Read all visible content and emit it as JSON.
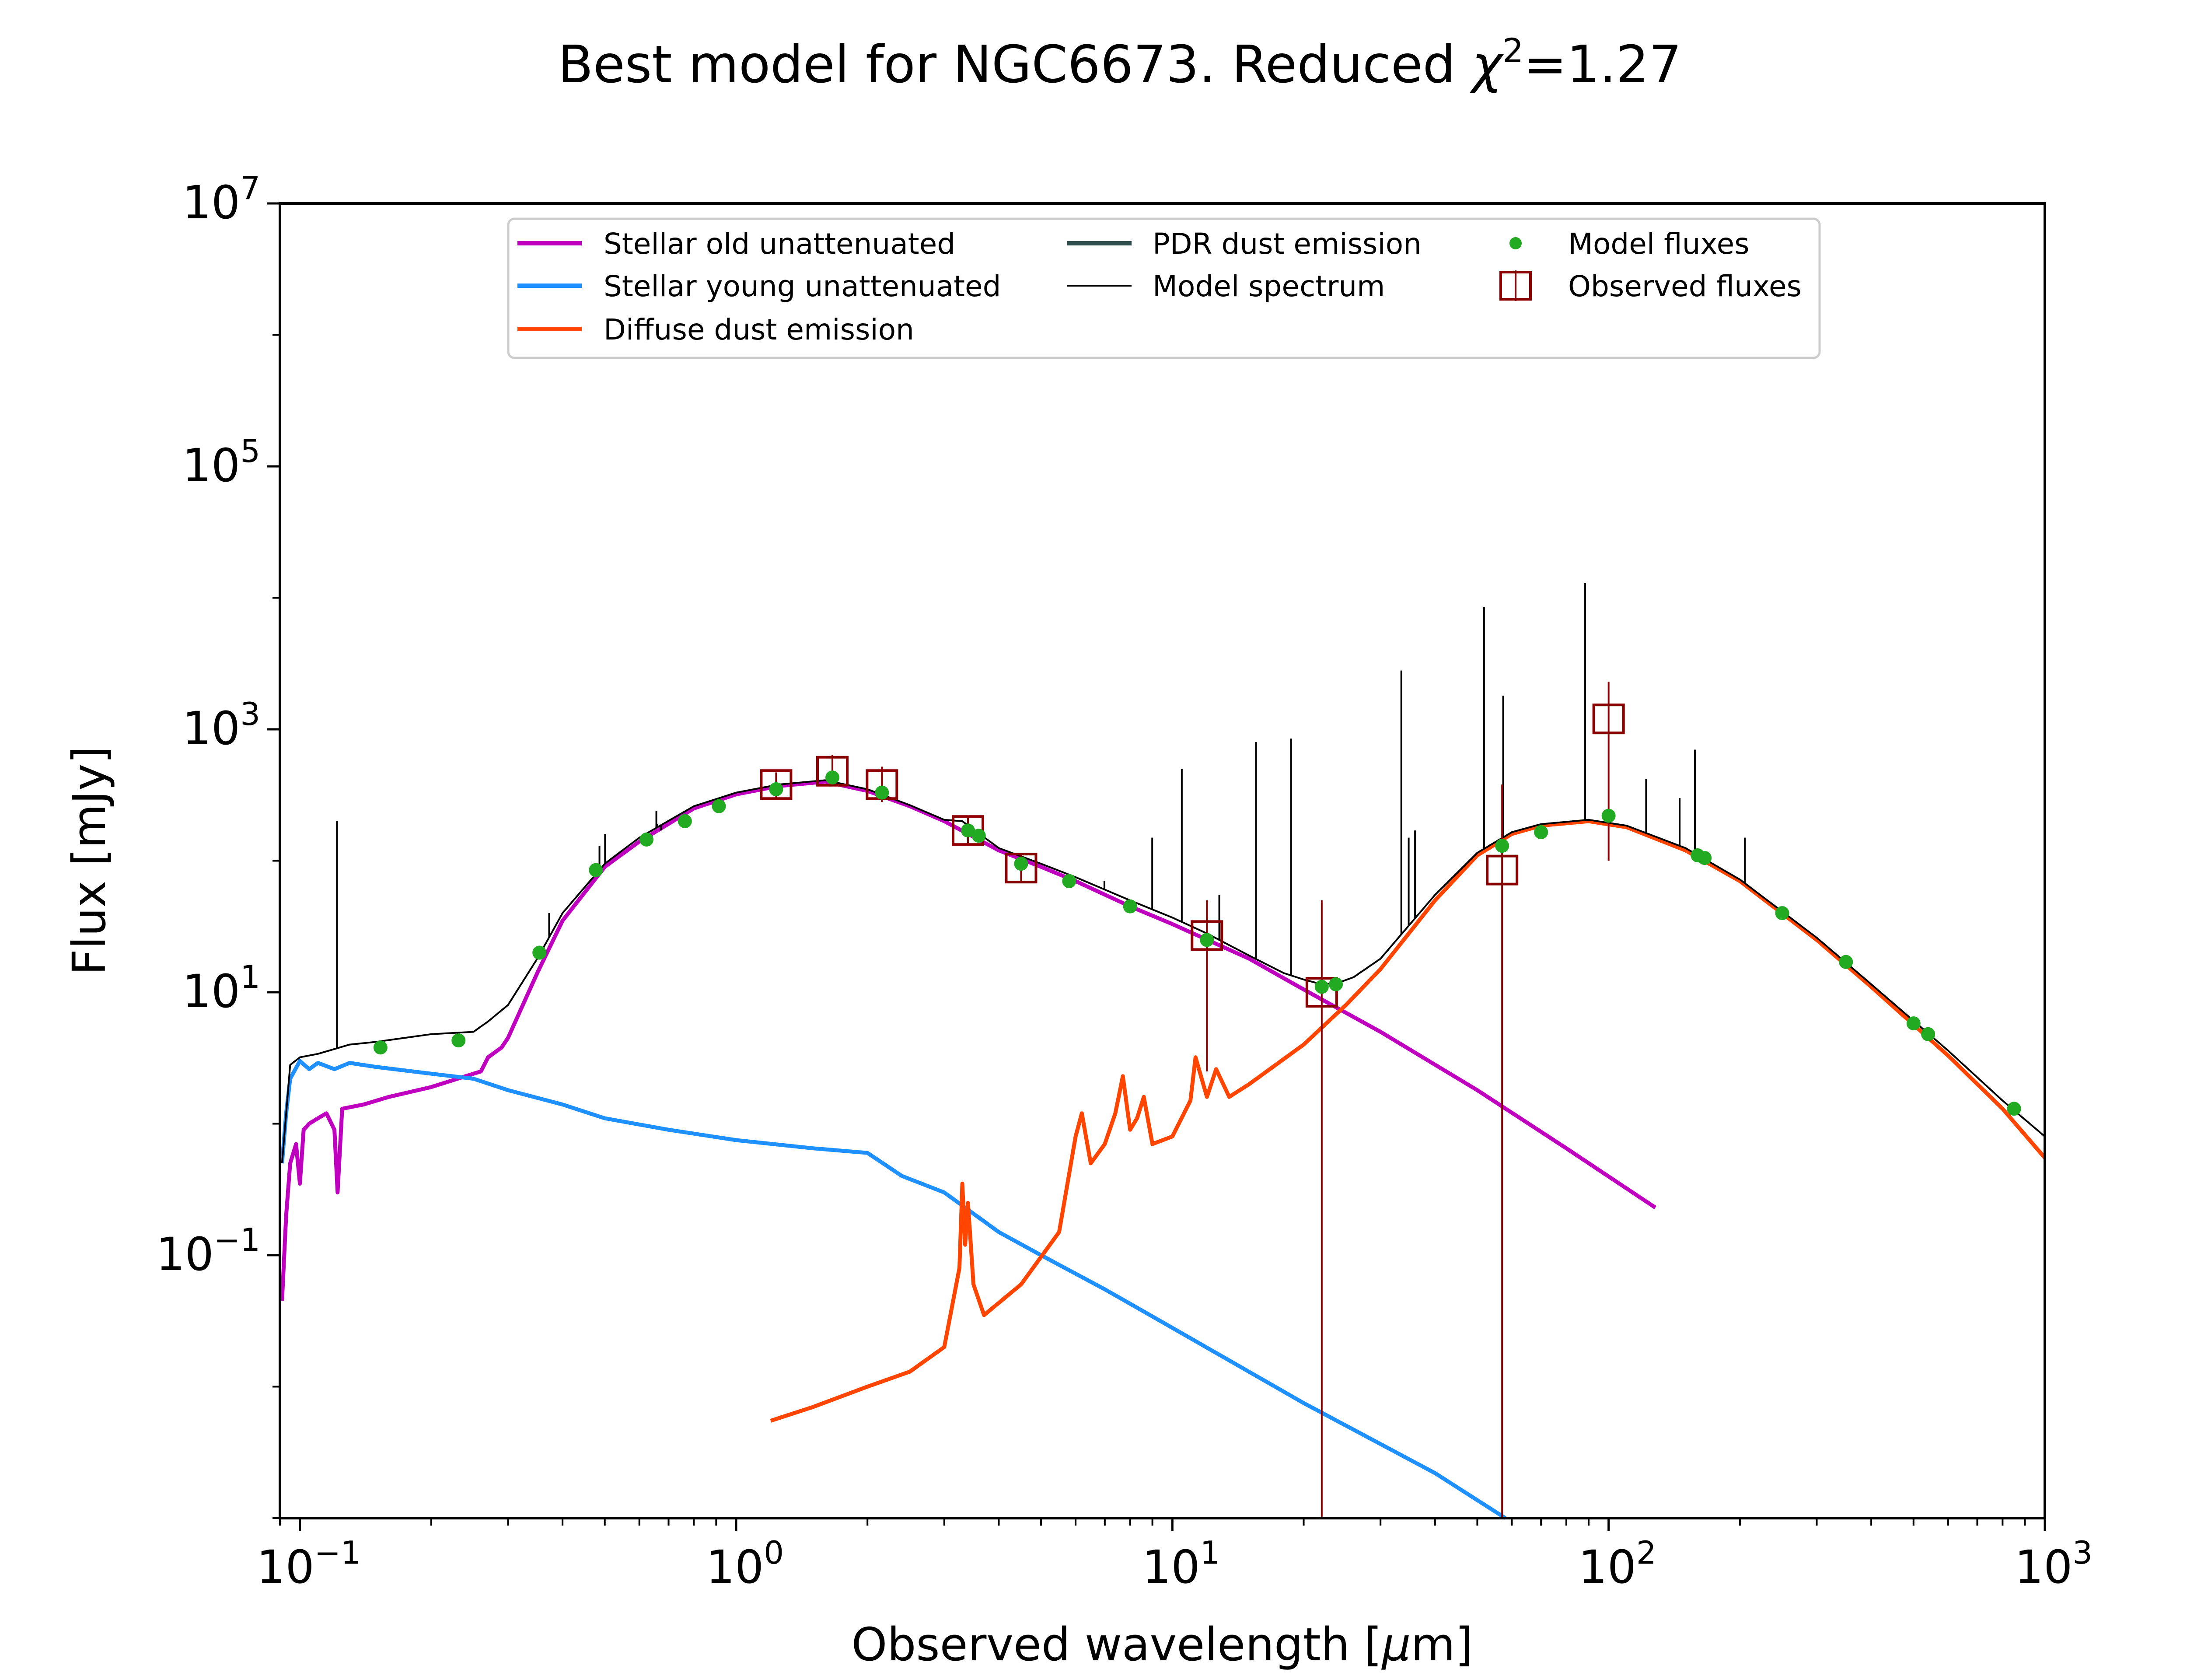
{
  "chart_data": {
    "type": "line",
    "title": "Best model for NGC6673. Reduced χ²=1.27",
    "title_parts": {
      "prefix": "Best model for NGC6673. Reduced ",
      "chi": "χ",
      "sup": "2",
      "suffix": "=1.27"
    },
    "xlabel": "Observed wavelength [μm]",
    "xlabel_parts": {
      "prefix": "Observed wavelength [",
      "mu": "μ",
      "suffix": "m]"
    },
    "ylabel": "Flux [mJy]",
    "xscale": "log",
    "yscale": "log",
    "xlim": [
      0.09,
      1000
    ],
    "ylim": [
      0.001,
      10000000
    ],
    "grid": false,
    "legend_position": "top",
    "xticks": [
      {
        "value": 0.1,
        "base": "10",
        "exp": "−1"
      },
      {
        "value": 1,
        "base": "10",
        "exp": "0"
      },
      {
        "value": 10,
        "base": "10",
        "exp": "1"
      },
      {
        "value": 100,
        "base": "10",
        "exp": "2"
      },
      {
        "value": 1000,
        "base": "10",
        "exp": "3"
      }
    ],
    "yticks": [
      {
        "value": 0.1,
        "base": "10",
        "exp": "−1"
      },
      {
        "value": 10,
        "base": "10",
        "exp": "1"
      },
      {
        "value": 1000,
        "base": "10",
        "exp": "3"
      },
      {
        "value": 100000,
        "base": "10",
        "exp": "5"
      },
      {
        "value": 10000000,
        "base": "10",
        "exp": "7"
      }
    ],
    "series": [
      {
        "name": "Stellar old unattenuated",
        "color": "#bf00bf",
        "points": [
          [
            0.091,
            0.045
          ],
          [
            0.093,
            0.2
          ],
          [
            0.095,
            0.5
          ],
          [
            0.098,
            0.7
          ],
          [
            0.1,
            0.35
          ],
          [
            0.102,
            0.9
          ],
          [
            0.105,
            1.0
          ],
          [
            0.11,
            1.1
          ],
          [
            0.115,
            1.2
          ],
          [
            0.12,
            0.9
          ],
          [
            0.122,
            0.3
          ],
          [
            0.125,
            1.3
          ],
          [
            0.14,
            1.4
          ],
          [
            0.16,
            1.6
          ],
          [
            0.2,
            1.9
          ],
          [
            0.24,
            2.3
          ],
          [
            0.26,
            2.5
          ],
          [
            0.27,
            3.2
          ],
          [
            0.29,
            3.8
          ],
          [
            0.3,
            4.5
          ],
          [
            0.35,
            14
          ],
          [
            0.4,
            35
          ],
          [
            0.5,
            90
          ],
          [
            0.6,
            140
          ],
          [
            0.8,
            250
          ],
          [
            1.0,
            320
          ],
          [
            1.25,
            370
          ],
          [
            1.6,
            400
          ],
          [
            2.0,
            340
          ],
          [
            2.5,
            260
          ],
          [
            3.0,
            200
          ],
          [
            4.0,
            120
          ],
          [
            5.0,
            90
          ],
          [
            6.0,
            70
          ],
          [
            8.0,
            45
          ],
          [
            10.0,
            33
          ],
          [
            15.0,
            18
          ],
          [
            20.0,
            10.5
          ],
          [
            30.0,
            5
          ],
          [
            50.0,
            1.8
          ],
          [
            80.0,
            0.65
          ],
          [
            128.0,
            0.23
          ]
        ]
      },
      {
        "name": "Stellar young unattenuated",
        "color": "#1e90ff",
        "points": [
          [
            0.091,
            0.5
          ],
          [
            0.093,
            1.2
          ],
          [
            0.095,
            2.2
          ],
          [
            0.1,
            3.0
          ],
          [
            0.105,
            2.6
          ],
          [
            0.11,
            2.9
          ],
          [
            0.12,
            2.6
          ],
          [
            0.13,
            2.9
          ],
          [
            0.15,
            2.7
          ],
          [
            0.2,
            2.4
          ],
          [
            0.25,
            2.2
          ],
          [
            0.3,
            1.8
          ],
          [
            0.4,
            1.4
          ],
          [
            0.5,
            1.1
          ],
          [
            0.7,
            0.9
          ],
          [
            1.0,
            0.75
          ],
          [
            1.5,
            0.65
          ],
          [
            2.0,
            0.6
          ],
          [
            2.4,
            0.4
          ],
          [
            3.0,
            0.3
          ],
          [
            4.0,
            0.15
          ],
          [
            5.0,
            0.1
          ],
          [
            7.0,
            0.055
          ],
          [
            10.0,
            0.028
          ],
          [
            20.0,
            0.0075
          ],
          [
            40.0,
            0.0022
          ],
          [
            58.0,
            0.001
          ]
        ]
      },
      {
        "name": "Diffuse dust emission",
        "color": "#ff4500",
        "points": [
          [
            1.2,
            0.0055
          ],
          [
            1.5,
            0.007
          ],
          [
            2.0,
            0.01
          ],
          [
            2.5,
            0.013
          ],
          [
            3.0,
            0.02
          ],
          [
            3.25,
            0.08
          ],
          [
            3.3,
            0.35
          ],
          [
            3.35,
            0.12
          ],
          [
            3.4,
            0.25
          ],
          [
            3.5,
            0.06
          ],
          [
            3.7,
            0.035
          ],
          [
            4.5,
            0.06
          ],
          [
            5.5,
            0.15
          ],
          [
            6.0,
            0.8
          ],
          [
            6.2,
            1.2
          ],
          [
            6.5,
            0.5
          ],
          [
            7.0,
            0.7
          ],
          [
            7.4,
            1.2
          ],
          [
            7.7,
            2.3
          ],
          [
            8.0,
            0.9
          ],
          [
            8.3,
            1.1
          ],
          [
            8.6,
            1.6
          ],
          [
            9.0,
            0.7
          ],
          [
            10.0,
            0.8
          ],
          [
            11.0,
            1.5
          ],
          [
            11.3,
            3.2
          ],
          [
            12.0,
            1.6
          ],
          [
            12.6,
            2.6
          ],
          [
            13.5,
            1.6
          ],
          [
            15.0,
            2.0
          ],
          [
            20.0,
            4.0
          ],
          [
            25.0,
            8.0
          ],
          [
            30.0,
            15
          ],
          [
            40.0,
            50
          ],
          [
            50.0,
            110
          ],
          [
            60.0,
            160
          ],
          [
            70.0,
            185
          ],
          [
            90.0,
            200
          ],
          [
            110.0,
            180
          ],
          [
            150.0,
            120
          ],
          [
            200.0,
            70
          ],
          [
            300.0,
            25
          ],
          [
            400.0,
            11
          ],
          [
            600.0,
            3.3
          ],
          [
            800.0,
            1.3
          ],
          [
            1000.0,
            0.55
          ]
        ]
      },
      {
        "name": "PDR dust emission",
        "color": "#2f4f4f",
        "points": []
      },
      {
        "name": "Model spectrum",
        "color": "#000000",
        "points": [
          [
            0.091,
            0.5
          ],
          [
            0.095,
            2.8
          ],
          [
            0.1,
            3.2
          ],
          [
            0.11,
            3.4
          ],
          [
            0.13,
            4.0
          ],
          [
            0.15,
            4.2
          ],
          [
            0.2,
            4.8
          ],
          [
            0.25,
            5.0
          ],
          [
            0.27,
            6.0
          ],
          [
            0.3,
            8
          ],
          [
            0.35,
            18
          ],
          [
            0.4,
            40
          ],
          [
            0.5,
            95
          ],
          [
            0.6,
            150
          ],
          [
            0.8,
            260
          ],
          [
            1.0,
            330
          ],
          [
            1.25,
            380
          ],
          [
            1.6,
            410
          ],
          [
            2.0,
            350
          ],
          [
            2.5,
            265
          ],
          [
            3.0,
            205
          ],
          [
            3.3,
            200
          ],
          [
            4.0,
            125
          ],
          [
            5.0,
            95
          ],
          [
            6.0,
            75
          ],
          [
            8.0,
            50
          ],
          [
            10.0,
            37
          ],
          [
            12.0,
            28
          ],
          [
            15.0,
            19
          ],
          [
            18.0,
            14
          ],
          [
            20.0,
            12.5
          ],
          [
            22.0,
            11.5
          ],
          [
            24.0,
            11.8
          ],
          [
            26.0,
            13
          ],
          [
            30.0,
            18
          ],
          [
            40.0,
            55
          ],
          [
            50.0,
            115
          ],
          [
            60.0,
            165
          ],
          [
            70.0,
            190
          ],
          [
            90.0,
            205
          ],
          [
            110.0,
            185
          ],
          [
            150.0,
            125
          ],
          [
            200.0,
            72
          ],
          [
            300.0,
            26
          ],
          [
            400.0,
            11.5
          ],
          [
            600.0,
            3.6
          ],
          [
            800.0,
            1.5
          ],
          [
            1000.0,
            0.8
          ]
        ]
      },
      {
        "name": "Model fluxes",
        "color": "#22aa22",
        "points": [
          [
            0.153,
            3.8
          ],
          [
            0.231,
            4.3
          ],
          [
            0.354,
            20
          ],
          [
            0.477,
            85
          ],
          [
            0.623,
            145
          ],
          [
            0.763,
            200
          ],
          [
            0.913,
            260
          ],
          [
            1.235,
            350
          ],
          [
            1.662,
            430
          ],
          [
            2.159,
            330
          ],
          [
            3.4,
            170
          ],
          [
            3.6,
            155
          ],
          [
            4.5,
            95
          ],
          [
            5.8,
            70
          ],
          [
            8.0,
            45
          ],
          [
            12.0,
            25
          ],
          [
            22.0,
            11
          ],
          [
            23.7,
            11.5
          ],
          [
            57.0,
            130
          ],
          [
            70.0,
            165
          ],
          [
            100.0,
            220
          ],
          [
            160.0,
            110
          ],
          [
            166.0,
            105
          ],
          [
            250.0,
            40
          ],
          [
            350.0,
            17
          ],
          [
            500.0,
            5.8
          ],
          [
            540.0,
            4.8
          ],
          [
            850.0,
            1.3
          ]
        ]
      },
      {
        "name": "Observed fluxes",
        "color": "#8b0000",
        "points": [
          {
            "x": 1.235,
            "y": 380,
            "ylow": 300,
            "yhigh": 470
          },
          {
            "x": 1.662,
            "y": 480,
            "ylow": 370,
            "yhigh": 640
          },
          {
            "x": 2.159,
            "y": 380,
            "ylow": 280,
            "yhigh": 520
          },
          {
            "x": 3.4,
            "y": 170,
            "ylow": 130,
            "yhigh": 215
          },
          {
            "x": 4.5,
            "y": 88,
            "ylow": 68,
            "yhigh": 112
          },
          {
            "x": 12.0,
            "y": 27,
            "ylow": 2.5,
            "yhigh": 50
          },
          {
            "x": 22.0,
            "y": 10,
            "ylow": 0.001,
            "yhigh": 50
          },
          {
            "x": 57.0,
            "y": 85,
            "ylow": 0.001,
            "yhigh": 380
          },
          {
            "x": 100.0,
            "y": 1200,
            "ylow": 100,
            "yhigh": 2300
          }
        ]
      }
    ],
    "emission_lines": [
      {
        "x": 0.1216,
        "y": 200
      },
      {
        "x": 0.3727,
        "y": 40
      },
      {
        "x": 0.4861,
        "y": 130
      },
      {
        "x": 0.5007,
        "y": 160
      },
      {
        "x": 0.6563,
        "y": 240
      },
      {
        "x": 0.6583,
        "y": 190
      },
      {
        "x": 0.6725,
        "y": 170
      },
      {
        "x": 6.985,
        "y": 70
      },
      {
        "x": 8.99,
        "y": 150
      },
      {
        "x": 10.51,
        "y": 500
      },
      {
        "x": 12.81,
        "y": 55
      },
      {
        "x": 15.55,
        "y": 800
      },
      {
        "x": 18.71,
        "y": 850
      },
      {
        "x": 33.48,
        "y": 2800
      },
      {
        "x": 34.81,
        "y": 150
      },
      {
        "x": 36.0,
        "y": 170
      },
      {
        "x": 51.81,
        "y": 8500
      },
      {
        "x": 57.32,
        "y": 1800
      },
      {
        "x": 88.36,
        "y": 13000
      },
      {
        "x": 121.9,
        "y": 420
      },
      {
        "x": 145.5,
        "y": 300
      },
      {
        "x": 157.7,
        "y": 700
      },
      {
        "x": 205.3,
        "y": 150
      }
    ]
  }
}
